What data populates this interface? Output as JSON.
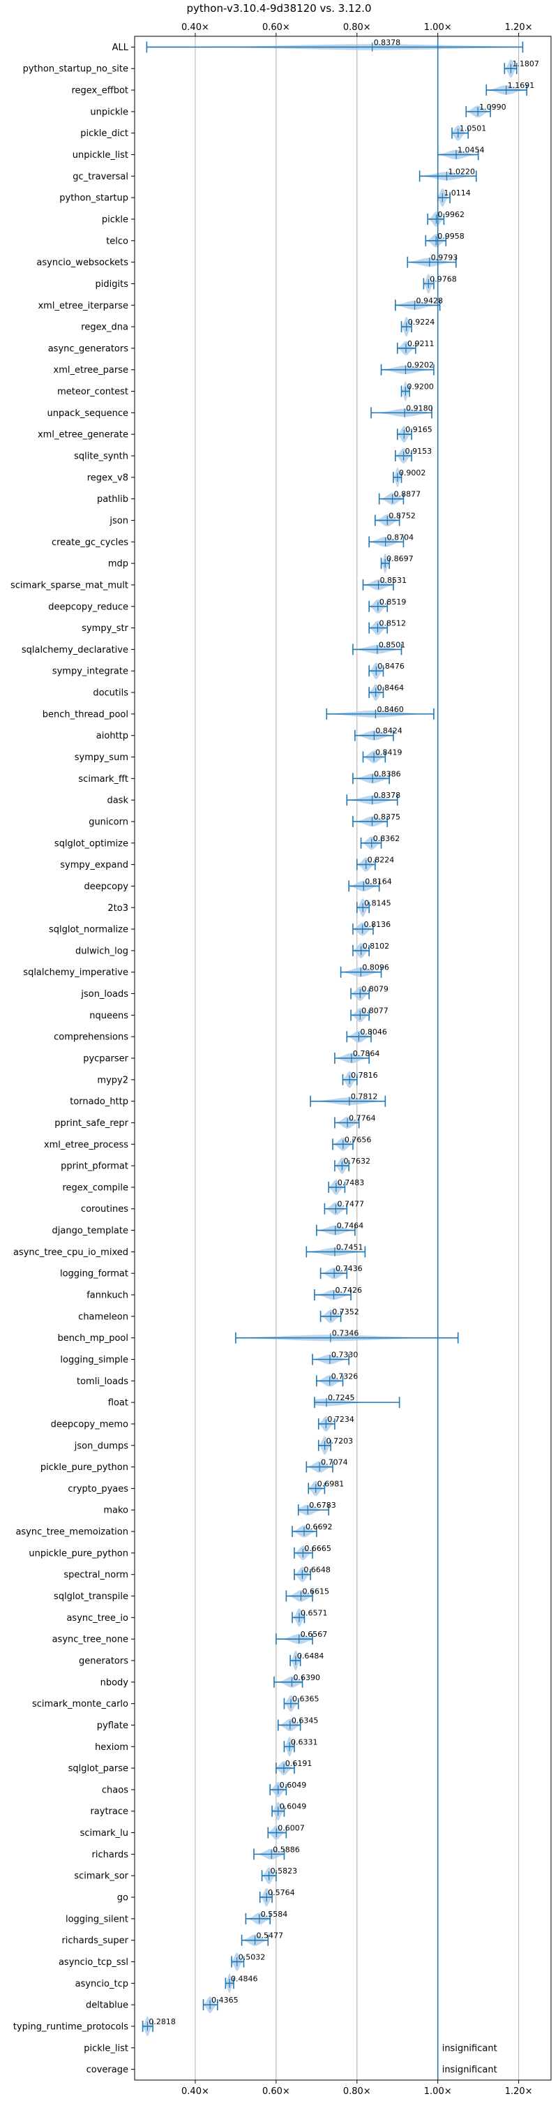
{
  "chart_data": {
    "type": "violin",
    "title": "python-v3.10.4-9d38120 vs. 3.12.0",
    "x_ticks": [
      0.4,
      0.6,
      0.8,
      1.0,
      1.2
    ],
    "x_tick_labels": [
      "0.40×",
      "0.60×",
      "0.80×",
      "1.00×",
      "1.20×"
    ],
    "xlim": [
      0.25,
      1.28
    ],
    "reference_line": 1.0,
    "grid": "vertical",
    "benchmarks": [
      {
        "name": "ALL",
        "value": 0.8378,
        "label": "0.8378",
        "min": 0.28,
        "max": 1.21
      },
      {
        "name": "python_startup_no_site",
        "value": 1.1807,
        "label": "1.1807",
        "min": 1.165,
        "max": 1.195
      },
      {
        "name": "regex_effbot",
        "value": 1.1691,
        "label": "1.1691",
        "min": 1.12,
        "max": 1.22
      },
      {
        "name": "unpickle",
        "value": 1.099,
        "label": "1.0990",
        "min": 1.07,
        "max": 1.13
      },
      {
        "name": "pickle_dict",
        "value": 1.0501,
        "label": "1.0501",
        "min": 1.035,
        "max": 1.075
      },
      {
        "name": "unpickle_list",
        "value": 1.0454,
        "label": "1.0454",
        "min": 1.0,
        "max": 1.1
      },
      {
        "name": "gc_traversal",
        "value": 1.022,
        "label": "1.0220",
        "min": 0.955,
        "max": 1.095
      },
      {
        "name": "python_startup",
        "value": 1.0114,
        "label": "1.0114",
        "min": 1.0,
        "max": 1.03
      },
      {
        "name": "pickle",
        "value": 0.9962,
        "label": "0.9962",
        "min": 0.975,
        "max": 1.015
      },
      {
        "name": "telco",
        "value": 0.9958,
        "label": "0.9958",
        "min": 0.97,
        "max": 1.02
      },
      {
        "name": "asyncio_websockets",
        "value": 0.9793,
        "label": "0.9793",
        "min": 0.925,
        "max": 1.045
      },
      {
        "name": "pidigits",
        "value": 0.9768,
        "label": "0.9768",
        "min": 0.965,
        "max": 0.99
      },
      {
        "name": "xml_etree_iterparse",
        "value": 0.9428,
        "label": "0.9428",
        "min": 0.895,
        "max": 1.005
      },
      {
        "name": "regex_dna",
        "value": 0.9224,
        "label": "0.9224",
        "min": 0.91,
        "max": 0.935
      },
      {
        "name": "async_generators",
        "value": 0.9211,
        "label": "0.9211",
        "min": 0.9,
        "max": 0.945
      },
      {
        "name": "xml_etree_parse",
        "value": 0.9202,
        "label": "0.9202",
        "min": 0.86,
        "max": 0.99
      },
      {
        "name": "meteor_contest",
        "value": 0.92,
        "label": "0.9200",
        "min": 0.91,
        "max": 0.93
      },
      {
        "name": "unpack_sequence",
        "value": 0.918,
        "label": "0.9180",
        "min": 0.835,
        "max": 0.985
      },
      {
        "name": "xml_etree_generate",
        "value": 0.9165,
        "label": "0.9165",
        "min": 0.9,
        "max": 0.935
      },
      {
        "name": "sqlite_synth",
        "value": 0.9153,
        "label": "0.9153",
        "min": 0.895,
        "max": 0.935
      },
      {
        "name": "regex_v8",
        "value": 0.9002,
        "label": "0.9002",
        "min": 0.89,
        "max": 0.91
      },
      {
        "name": "pathlib",
        "value": 0.8877,
        "label": "0.8877",
        "min": 0.855,
        "max": 0.915
      },
      {
        "name": "json",
        "value": 0.8752,
        "label": "0.8752",
        "min": 0.845,
        "max": 0.905
      },
      {
        "name": "create_gc_cycles",
        "value": 0.8704,
        "label": "0.8704",
        "min": 0.83,
        "max": 0.915
      },
      {
        "name": "mdp",
        "value": 0.8697,
        "label": "0.8697",
        "min": 0.86,
        "max": 0.88
      },
      {
        "name": "scimark_sparse_mat_mult",
        "value": 0.8531,
        "label": "0.8531",
        "min": 0.815,
        "max": 0.89
      },
      {
        "name": "deepcopy_reduce",
        "value": 0.8519,
        "label": "0.8519",
        "min": 0.83,
        "max": 0.875
      },
      {
        "name": "sympy_str",
        "value": 0.8512,
        "label": "0.8512",
        "min": 0.83,
        "max": 0.875
      },
      {
        "name": "sqlalchemy_declarative",
        "value": 0.8501,
        "label": "0.8501",
        "min": 0.79,
        "max": 0.91
      },
      {
        "name": "sympy_integrate",
        "value": 0.8476,
        "label": "0.8476",
        "min": 0.83,
        "max": 0.865
      },
      {
        "name": "docutils",
        "value": 0.8464,
        "label": "0.8464",
        "min": 0.83,
        "max": 0.865
      },
      {
        "name": "bench_thread_pool",
        "value": 0.846,
        "label": "0.8460",
        "min": 0.725,
        "max": 0.99
      },
      {
        "name": "aiohttp",
        "value": 0.8424,
        "label": "0.8424",
        "min": 0.795,
        "max": 0.89
      },
      {
        "name": "sympy_sum",
        "value": 0.8419,
        "label": "0.8419",
        "min": 0.815,
        "max": 0.87
      },
      {
        "name": "scimark_fft",
        "value": 0.8386,
        "label": "0.8386",
        "min": 0.79,
        "max": 0.88
      },
      {
        "name": "dask",
        "value": 0.8378,
        "label": "0.8378",
        "min": 0.775,
        "max": 0.9
      },
      {
        "name": "gunicorn",
        "value": 0.8375,
        "label": "0.8375",
        "min": 0.79,
        "max": 0.875
      },
      {
        "name": "sqlglot_optimize",
        "value": 0.8362,
        "label": "0.8362",
        "min": 0.81,
        "max": 0.86
      },
      {
        "name": "sympy_expand",
        "value": 0.8224,
        "label": "0.8224",
        "min": 0.8,
        "max": 0.845
      },
      {
        "name": "deepcopy",
        "value": 0.8164,
        "label": "0.8164",
        "min": 0.78,
        "max": 0.855
      },
      {
        "name": "2to3",
        "value": 0.8145,
        "label": "0.8145",
        "min": 0.8,
        "max": 0.83
      },
      {
        "name": "sqlglot_normalize",
        "value": 0.8136,
        "label": "0.8136",
        "min": 0.79,
        "max": 0.84
      },
      {
        "name": "dulwich_log",
        "value": 0.8102,
        "label": "0.8102",
        "min": 0.79,
        "max": 0.83
      },
      {
        "name": "sqlalchemy_imperative",
        "value": 0.8096,
        "label": "0.8096",
        "min": 0.76,
        "max": 0.86
      },
      {
        "name": "json_loads",
        "value": 0.8079,
        "label": "0.8079",
        "min": 0.785,
        "max": 0.83
      },
      {
        "name": "nqueens",
        "value": 0.8077,
        "label": "0.8077",
        "min": 0.785,
        "max": 0.83
      },
      {
        "name": "comprehensions",
        "value": 0.8046,
        "label": "0.8046",
        "min": 0.775,
        "max": 0.835
      },
      {
        "name": "pycparser",
        "value": 0.7864,
        "label": "0.7864",
        "min": 0.745,
        "max": 0.83
      },
      {
        "name": "mypy2",
        "value": 0.7816,
        "label": "0.7816",
        "min": 0.765,
        "max": 0.8
      },
      {
        "name": "tornado_http",
        "value": 0.7812,
        "label": "0.7812",
        "min": 0.685,
        "max": 0.87
      },
      {
        "name": "pprint_safe_repr",
        "value": 0.7764,
        "label": "0.7764",
        "min": 0.745,
        "max": 0.805
      },
      {
        "name": "xml_etree_process",
        "value": 0.7656,
        "label": "0.7656",
        "min": 0.74,
        "max": 0.79
      },
      {
        "name": "pprint_pformat",
        "value": 0.7632,
        "label": "0.7632",
        "min": 0.745,
        "max": 0.78
      },
      {
        "name": "regex_compile",
        "value": 0.7483,
        "label": "0.7483",
        "min": 0.73,
        "max": 0.77
      },
      {
        "name": "coroutines",
        "value": 0.7477,
        "label": "0.7477",
        "min": 0.72,
        "max": 0.775
      },
      {
        "name": "django_template",
        "value": 0.7464,
        "label": "0.7464",
        "min": 0.7,
        "max": 0.795
      },
      {
        "name": "async_tree_cpu_io_mixed",
        "value": 0.7451,
        "label": "0.7451",
        "min": 0.675,
        "max": 0.82
      },
      {
        "name": "logging_format",
        "value": 0.7436,
        "label": "0.7436",
        "min": 0.71,
        "max": 0.775
      },
      {
        "name": "fannkuch",
        "value": 0.7426,
        "label": "0.7426",
        "min": 0.695,
        "max": 0.785
      },
      {
        "name": "chameleon",
        "value": 0.7352,
        "label": "0.7352",
        "min": 0.71,
        "max": 0.76
      },
      {
        "name": "bench_mp_pool",
        "value": 0.7346,
        "label": "0.7346",
        "min": 0.5,
        "max": 1.05
      },
      {
        "name": "logging_simple",
        "value": 0.733,
        "label": "0.7330",
        "min": 0.69,
        "max": 0.78
      },
      {
        "name": "tomli_loads",
        "value": 0.7326,
        "label": "0.7326",
        "min": 0.7,
        "max": 0.765
      },
      {
        "name": "float",
        "value": 0.7245,
        "label": "0.7245",
        "min": 0.695,
        "max": 0.905
      },
      {
        "name": "deepcopy_memo",
        "value": 0.7234,
        "label": "0.7234",
        "min": 0.705,
        "max": 0.745
      },
      {
        "name": "json_dumps",
        "value": 0.7203,
        "label": "0.7203",
        "min": 0.705,
        "max": 0.735
      },
      {
        "name": "pickle_pure_python",
        "value": 0.7074,
        "label": "0.7074",
        "min": 0.675,
        "max": 0.74
      },
      {
        "name": "crypto_pyaes",
        "value": 0.6981,
        "label": "0.6981",
        "min": 0.68,
        "max": 0.72
      },
      {
        "name": "mako",
        "value": 0.6783,
        "label": "0.6783",
        "min": 0.655,
        "max": 0.73
      },
      {
        "name": "async_tree_memoization",
        "value": 0.6692,
        "label": "0.6692",
        "min": 0.64,
        "max": 0.7
      },
      {
        "name": "unpickle_pure_python",
        "value": 0.6665,
        "label": "0.6665",
        "min": 0.645,
        "max": 0.69
      },
      {
        "name": "spectral_norm",
        "value": 0.6648,
        "label": "0.6648",
        "min": 0.645,
        "max": 0.685
      },
      {
        "name": "sqlglot_transpile",
        "value": 0.6615,
        "label": "0.6615",
        "min": 0.625,
        "max": 0.69
      },
      {
        "name": "async_tree_io",
        "value": 0.6571,
        "label": "0.6571",
        "min": 0.64,
        "max": 0.67
      },
      {
        "name": "async_tree_none",
        "value": 0.6567,
        "label": "0.6567",
        "min": 0.6,
        "max": 0.69
      },
      {
        "name": "generators",
        "value": 0.6484,
        "label": "0.6484",
        "min": 0.635,
        "max": 0.66
      },
      {
        "name": "nbody",
        "value": 0.639,
        "label": "0.6390",
        "min": 0.595,
        "max": 0.665
      },
      {
        "name": "scimark_monte_carlo",
        "value": 0.6365,
        "label": "0.6365",
        "min": 0.62,
        "max": 0.655
      },
      {
        "name": "pyflate",
        "value": 0.6345,
        "label": "0.6345",
        "min": 0.605,
        "max": 0.66
      },
      {
        "name": "hexiom",
        "value": 0.6331,
        "label": "0.6331",
        "min": 0.62,
        "max": 0.645
      },
      {
        "name": "sqlglot_parse",
        "value": 0.6191,
        "label": "0.6191",
        "min": 0.6,
        "max": 0.645
      },
      {
        "name": "chaos",
        "value": 0.6049,
        "label": "0.6049",
        "min": 0.585,
        "max": 0.625
      },
      {
        "name": "raytrace",
        "value": 0.6049,
        "label": "0.6049",
        "min": 0.59,
        "max": 0.62
      },
      {
        "name": "scimark_lu",
        "value": 0.6007,
        "label": "0.6007",
        "min": 0.58,
        "max": 0.625
      },
      {
        "name": "richards",
        "value": 0.5886,
        "label": "0.5886",
        "min": 0.545,
        "max": 0.62
      },
      {
        "name": "scimark_sor",
        "value": 0.5823,
        "label": "0.5823",
        "min": 0.565,
        "max": 0.6
      },
      {
        "name": "go",
        "value": 0.5764,
        "label": "0.5764",
        "min": 0.56,
        "max": 0.59
      },
      {
        "name": "logging_silent",
        "value": 0.5584,
        "label": "0.5584",
        "min": 0.525,
        "max": 0.585
      },
      {
        "name": "richards_super",
        "value": 0.5477,
        "label": "0.5477",
        "min": 0.515,
        "max": 0.58
      },
      {
        "name": "asyncio_tcp_ssl",
        "value": 0.5032,
        "label": "0.5032",
        "min": 0.49,
        "max": 0.52
      },
      {
        "name": "asyncio_tcp",
        "value": 0.4846,
        "label": "0.4846",
        "min": 0.475,
        "max": 0.495
      },
      {
        "name": "deltablue",
        "value": 0.4365,
        "label": "0.4365",
        "min": 0.42,
        "max": 0.455
      },
      {
        "name": "typing_runtime_protocols",
        "value": 0.2818,
        "label": "0.2818",
        "min": 0.27,
        "max": 0.295
      },
      {
        "name": "pickle_list",
        "insignificant": "insignificant"
      },
      {
        "name": "coverage",
        "insignificant": "insignificant"
      }
    ]
  },
  "colors": {
    "line": "#1f77b4",
    "violin": "#a6c8e8",
    "grid": "#b0b0b0",
    "axis": "#000000"
  }
}
